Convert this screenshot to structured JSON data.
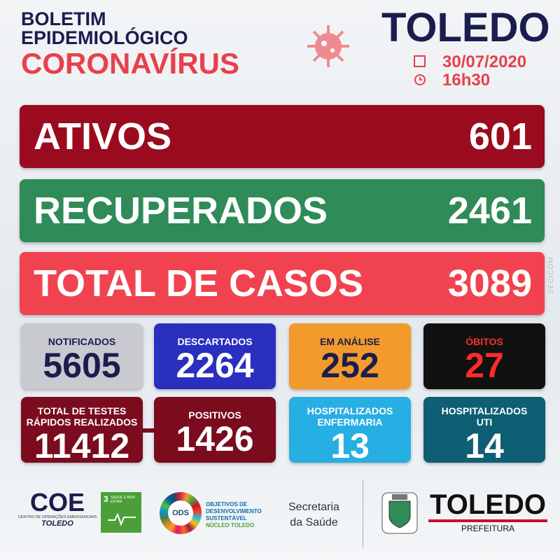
{
  "header": {
    "title_lines": [
      "BOLETIM",
      "EPIDEMIOLÓGICO"
    ],
    "subtitle": "CORONAVÍRUS",
    "city": "TOLEDO",
    "date": "30/07/2020",
    "time": "16h30"
  },
  "bars": [
    {
      "label": "ATIVOS",
      "value": 601
    },
    {
      "label": "RECUPERADOS",
      "value": 2461
    },
    {
      "label": "TOTAL DE CASOS",
      "value": 3089
    }
  ],
  "cards": [
    {
      "label_lines": [
        "NOTIFICADOS"
      ],
      "value": 5605
    },
    {
      "label_lines": [
        "DESCARTADOS"
      ],
      "value": 2264
    },
    {
      "label_lines": [
        "EM ANÁLISE"
      ],
      "value": 252
    },
    {
      "label_lines": [
        "ÓBITOS"
      ],
      "value": 27
    },
    {
      "label_lines": [
        "TOTAL DE TESTES",
        "RÁPIDOS REALIZADOS"
      ],
      "value": 11412
    },
    {
      "label_lines": [
        "POSITIVOS"
      ],
      "value": 1426
    },
    {
      "label_lines": [
        "HOSPITALIZADOS",
        "ENFERMARIA"
      ],
      "value": 13
    },
    {
      "label_lines": [
        "HOSPITALIZADOS",
        "UTI"
      ],
      "value": 14
    }
  ],
  "side_text": "SECICOM",
  "footer": {
    "coe": {
      "logo": "COE",
      "lines": [
        "CENTRO DE OPERAÇÕES EMERGENCIAIS",
        "TOLEDO"
      ]
    },
    "sdg": {
      "number": "3",
      "label": "SAÚDE E BEM-ESTAR"
    },
    "ods": {
      "logo": "ODS",
      "lines": [
        "OBJETIVOS DE",
        "DESENVOLVIMENTO",
        "SUSTENTÁVEL",
        "NÚCLEO TOLEDO"
      ]
    },
    "secretaria": [
      "Secretaria",
      "da Saúde"
    ],
    "prefeitura": {
      "name": "TOLEDO",
      "label": "PREFEITURA"
    }
  }
}
